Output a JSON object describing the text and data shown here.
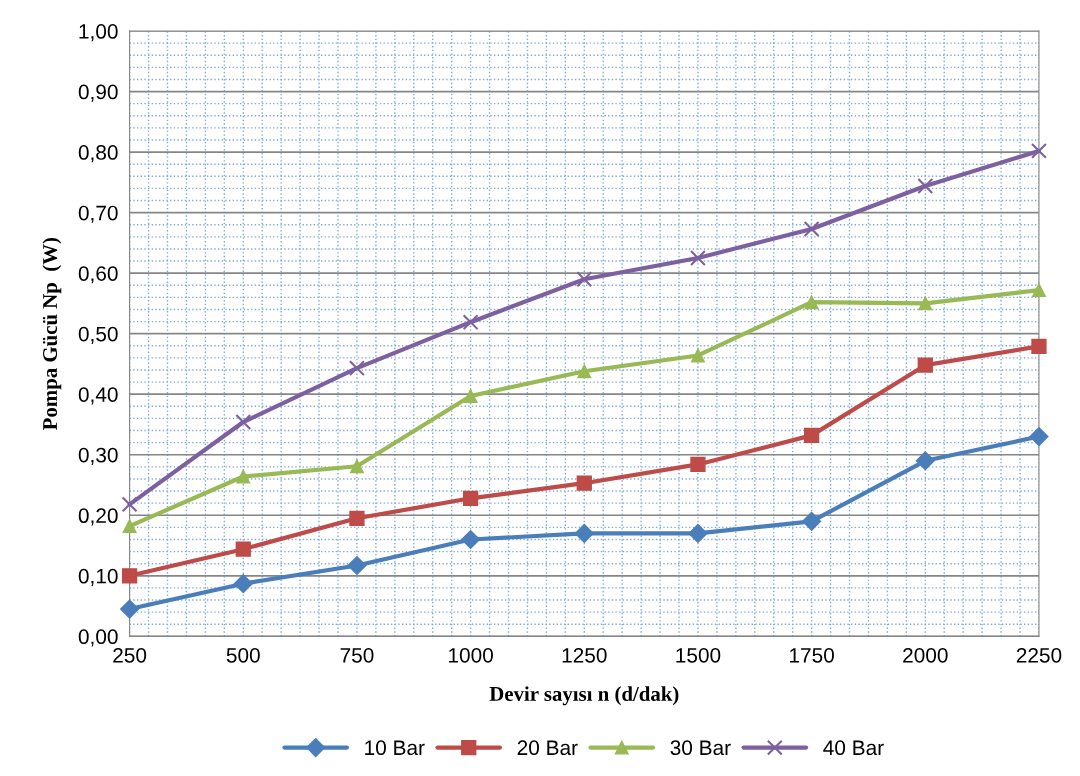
{
  "chart_data": {
    "type": "line",
    "xlabel": "Devir sayısı n (d/dak)",
    "ylabel": "Pompa Gücü Np  (W)",
    "x": [
      250,
      500,
      750,
      1000,
      1250,
      1500,
      1750,
      2000,
      2250
    ],
    "series": [
      {
        "name": "10 Bar",
        "color": "#4a7ebb",
        "marker": "diamond",
        "values": [
          0.045,
          0.087,
          0.117,
          0.16,
          0.17,
          0.17,
          0.19,
          0.29,
          0.33
        ]
      },
      {
        "name": "20 Bar",
        "color": "#be4b48",
        "marker": "square",
        "values": [
          0.1,
          0.144,
          0.195,
          0.228,
          0.253,
          0.284,
          0.332,
          0.448,
          0.479
        ]
      },
      {
        "name": "30 Bar",
        "color": "#98b954",
        "marker": "triangle",
        "values": [
          0.182,
          0.264,
          0.281,
          0.397,
          0.438,
          0.464,
          0.552,
          0.55,
          0.572
        ]
      },
      {
        "name": "40 Bar",
        "color": "#7d60a0",
        "marker": "cross",
        "values": [
          0.218,
          0.354,
          0.443,
          0.519,
          0.59,
          0.625,
          0.673,
          0.744,
          0.802
        ]
      }
    ],
    "xlim": [
      250,
      2250
    ],
    "xticks": [
      250,
      500,
      750,
      1000,
      1250,
      1500,
      1750,
      2000,
      2250
    ],
    "ylim": [
      0,
      1
    ],
    "yticks": [
      {
        "value": 0,
        "label": "0,00"
      },
      {
        "value": 0.1,
        "label": "0,10"
      },
      {
        "value": 0.2,
        "label": "0,20"
      },
      {
        "value": 0.3,
        "label": "0,30"
      },
      {
        "value": 0.4,
        "label": "0,40"
      },
      {
        "value": 0.5,
        "label": "0,50"
      },
      {
        "value": 0.6,
        "label": "0,60"
      },
      {
        "value": 0.7,
        "label": "0,70"
      },
      {
        "value": 0.8,
        "label": "0,80"
      },
      {
        "value": 0.9,
        "label": "0,90"
      },
      {
        "value": 1,
        "label": "1,00"
      }
    ],
    "grid": true,
    "legend": "bottom",
    "line_style": "solid"
  }
}
